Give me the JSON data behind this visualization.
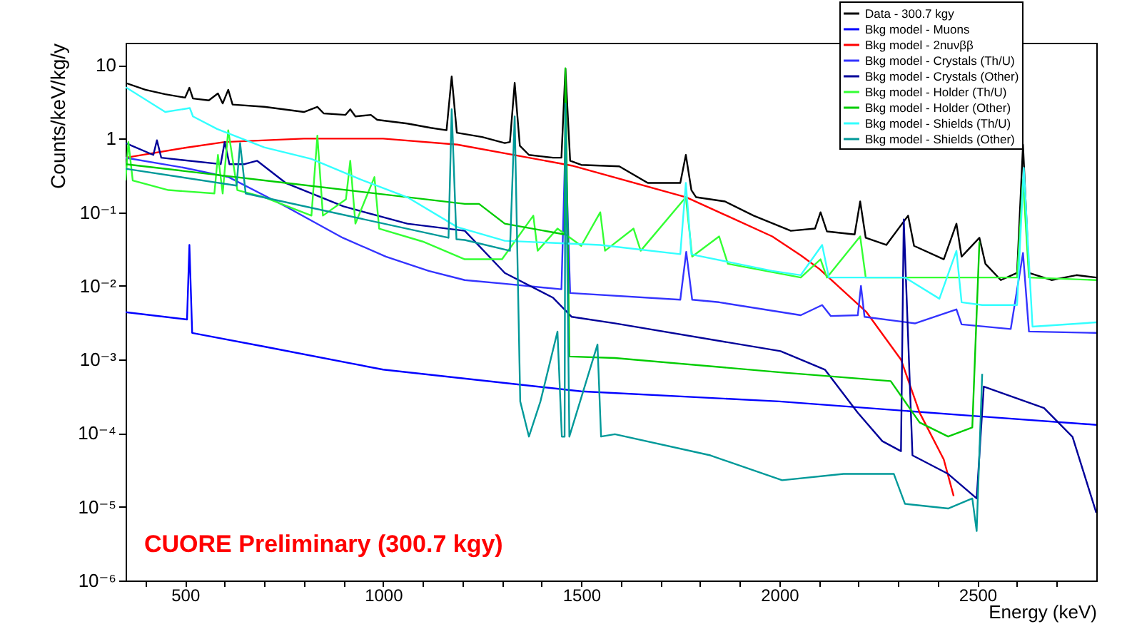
{
  "chart_data": {
    "type": "line",
    "xlabel": "Energy (keV)",
    "ylabel": "Counts/keV/kg/y",
    "annotations": [
      "CUORE Preliminary (300.7 kgy)"
    ],
    "xlim": [
      350,
      2800
    ],
    "xticks": [
      {
        "value": 400,
        "label": null
      },
      500,
      {
        "value": 600,
        "label": null
      },
      {
        "value": 700,
        "label": null
      },
      {
        "value": 800,
        "label": null
      },
      {
        "value": 900,
        "label": null
      },
      1000,
      {
        "value": 1100,
        "label": null
      },
      {
        "value": 1200,
        "label": null
      },
      {
        "value": 1300,
        "label": null
      },
      {
        "value": 1400,
        "label": null
      },
      1500,
      {
        "value": 1600,
        "label": null
      },
      {
        "value": 1700,
        "label": null
      },
      {
        "value": 1800,
        "label": null
      },
      {
        "value": 1900,
        "label": null
      },
      2000,
      {
        "value": 2100,
        "label": null
      },
      {
        "value": 2200,
        "label": null
      },
      {
        "value": 2300,
        "label": null
      },
      {
        "value": 2400,
        "label": null
      },
      2500,
      {
        "value": 2600,
        "label": null
      },
      {
        "value": 2700,
        "label": null
      }
    ],
    "ylim": [
      1e-06,
      20
    ],
    "log": "y",
    "yticks": [
      {
        "value": 1e-06,
        "label": "10⁻⁶"
      },
      {
        "value": 1e-05,
        "label": "10⁻⁵"
      },
      {
        "value": 0.0001,
        "label": "10⁻⁴"
      },
      {
        "value": 0.001,
        "label": "10⁻³"
      },
      {
        "value": 0.01,
        "label": "10⁻²"
      },
      {
        "value": 0.1,
        "label": "10⁻¹"
      },
      1,
      10
    ],
    "grid": false,
    "legend": "top right",
    "series": [
      {
        "name": "Data - 300.7 kgy",
        "color": "#000000",
        "x": [
          350,
          400,
          450,
          500,
          511,
          520,
          560,
          583,
          595,
          609,
          620,
          700,
          800,
          834,
          850,
          905,
          917,
          930,
          969,
          985,
          1061,
          1120,
          1160,
          1173,
          1186,
          1250,
          1307,
          1320,
          1332,
          1345,
          1368,
          1429,
          1450,
          1460,
          1472,
          1500,
          1596,
          1668,
          1750,
          1764,
          1778,
          1790,
          1863,
          1935,
          2029,
          2090,
          2104,
          2120,
          2190,
          2204,
          2218,
          2270,
          2325,
          2340,
          2415,
          2447,
          2460,
          2505,
          2520,
          2559,
          2600,
          2615,
          2630,
          2687,
          2750,
          2800
        ],
        "values": [
          5.7,
          4.6,
          4.0,
          3.6,
          4.9,
          3.5,
          3.3,
          4.1,
          3.0,
          4.6,
          2.9,
          2.7,
          2.3,
          2.7,
          2.2,
          2.1,
          2.5,
          2.0,
          2.1,
          1.8,
          1.6,
          1.4,
          1.3,
          7,
          1.2,
          1.05,
          0.87,
          0.9,
          5.7,
          0.8,
          0.6,
          0.55,
          0.55,
          8.9,
          0.5,
          0.44,
          0.42,
          0.25,
          0.25,
          0.6,
          0.2,
          0.16,
          0.14,
          0.09,
          0.056,
          0.06,
          0.1,
          0.055,
          0.05,
          0.14,
          0.045,
          0.036,
          0.09,
          0.035,
          0.023,
          0.07,
          0.025,
          0.045,
          0.02,
          0.012,
          0.015,
          0.83,
          0.015,
          0.012,
          0.014,
          0.013
        ]
      },
      {
        "name": "Bkg model - Muons",
        "color": "#0000ff",
        "x": [
          350,
          505,
          511,
          518,
          700,
          1000,
          1500,
          2000,
          2500,
          2800
        ],
        "values": [
          0.0044,
          0.0035,
          0.036,
          0.0023,
          0.0015,
          0.00073,
          0.00037,
          0.00027,
          0.00017,
          0.00013
        ]
      },
      {
        "name": "Bkg model - 2nuνββ",
        "color": "#ff0000",
        "x": [
          350,
          500,
          600,
          800,
          1000,
          1187,
          1476,
          1765,
          1982,
          2054,
          2101,
          2220,
          2307,
          2354,
          2415,
          2440
        ],
        "values": [
          0.55,
          0.75,
          0.9,
          1.0,
          1.0,
          0.83,
          0.43,
          0.16,
          0.047,
          0.026,
          0.017,
          0.0044,
          0.001,
          0.00019,
          4.4e-05,
          1.4e-05
        ]
      },
      {
        "name": "Bkg model - Crystals (Th/U)",
        "color": "#3333ff",
        "x": [
          350,
          500,
          610,
          754,
          898,
          1007,
          1115,
          1206,
          1307,
          1450,
          1460,
          1472,
          1750,
          1765,
          1780,
          1848,
          2054,
          2108,
          2130,
          2198,
          2206,
          2215,
          2343,
          2447,
          2460,
          2584,
          2615,
          2630,
          2800
        ],
        "values": [
          0.55,
          0.4,
          0.3,
          0.12,
          0.045,
          0.025,
          0.016,
          0.012,
          0.0107,
          0.009,
          0.9,
          0.008,
          0.0065,
          0.029,
          0.0065,
          0.006,
          0.004,
          0.0055,
          0.0039,
          0.004,
          0.01,
          0.0038,
          0.0031,
          0.0048,
          0.003,
          0.0026,
          0.028,
          0.0024,
          0.0023
        ]
      },
      {
        "name": "Bkg model - Crystals (Other)",
        "color": "#000099",
        "x": [
          350,
          420,
          429,
          440,
          590,
          600,
          612,
          650,
          682,
          754,
          900,
          1061,
          1206,
          1307,
          1429,
          1476,
          1585,
          2003,
          2115,
          2198,
          2260,
          2307,
          2314,
          2336,
          2426,
          2498,
          2516,
          2668,
          2740,
          2800
        ],
        "values": [
          0.87,
          0.6,
          0.95,
          0.55,
          0.45,
          0.9,
          0.45,
          0.45,
          0.5,
          0.25,
          0.12,
          0.07,
          0.056,
          0.015,
          0.0069,
          0.0038,
          0.0031,
          0.0013,
          0.00073,
          0.00019,
          7.8e-05,
          5.7e-05,
          0.08,
          5e-05,
          2.8e-05,
          1.3e-05,
          0.00043,
          0.00022,
          8.9e-05,
          8.3e-06
        ]
      },
      {
        "name": "Bkg model - Holder (Th/U)",
        "color": "#33ff33",
        "x": [
          350,
          357,
          368,
          458,
          574,
          583,
          595,
          609,
          632,
          700,
          819,
          834,
          848,
          906,
          917,
          930,
          978,
          990,
          1100,
          1206,
          1300,
          1379,
          1390,
          1440,
          1500,
          1548,
          1560,
          1632,
          1650,
          1764,
          1780,
          1848,
          1870,
          2054,
          2104,
          2120,
          2204,
          2218,
          2400,
          2600,
          2615,
          2630,
          2800
        ],
        "values": [
          0.27,
          0.9,
          0.27,
          0.2,
          0.18,
          0.6,
          0.18,
          1.3,
          0.2,
          0.16,
          0.09,
          1.1,
          0.09,
          0.15,
          0.5,
          0.07,
          0.3,
          0.06,
          0.04,
          0.023,
          0.023,
          0.09,
          0.03,
          0.06,
          0.035,
          0.1,
          0.03,
          0.06,
          0.03,
          0.16,
          0.025,
          0.047,
          0.02,
          0.013,
          0.023,
          0.013,
          0.047,
          0.013,
          0.013,
          0.013,
          0.28,
          0.013,
          0.012
        ]
      },
      {
        "name": "Bkg model - Holder (Other)",
        "color": "#00cc00",
        "x": [
          350,
          754,
          1206,
          1242,
          1307,
          1458,
          1460,
          1470,
          1585,
          2003,
          2281,
          2354,
          2426,
          2487,
          2505
        ],
        "values": [
          0.45,
          0.25,
          0.13,
          0.13,
          0.07,
          0.05,
          9,
          0.0011,
          0.00105,
          0.00067,
          0.00051,
          0.00014,
          9e-05,
          0.00012,
          0.04
        ]
      },
      {
        "name": "Bkg model - Shields (Th/U)",
        "color": "#33ffff",
        "x": [
          350,
          450,
          512,
          520,
          581,
          700,
          819,
          942,
          1061,
          1187,
          1307,
          1548,
          1750,
          1764,
          1778,
          1790,
          1982,
          2054,
          2108,
          2125,
          2317,
          2404,
          2447,
          2460,
          2512,
          2600,
          2617,
          2639,
          2800
        ],
        "values": [
          5,
          2.3,
          2.6,
          2.0,
          1.35,
          0.76,
          0.53,
          0.28,
          0.16,
          0.063,
          0.041,
          0.036,
          0.027,
          0.25,
          0.027,
          0.026,
          0.016,
          0.014,
          0.036,
          0.013,
          0.013,
          0.0067,
          0.03,
          0.006,
          0.0055,
          0.0055,
          0.4,
          0.0028,
          0.0032
        ]
      },
      {
        "name": "Bkg model - Shields (Other)",
        "color": "#009999",
        "x": [
          350,
          630,
          639,
          653,
          1165,
          1173,
          1185,
          1206,
          1320,
          1332,
          1346,
          1368,
          1397,
          1440,
          1451,
          1458,
          1460,
          1470,
          1541,
          1550,
          1585,
          1826,
          2007,
          2162,
          2289,
          2317,
          2426,
          2487,
          2498,
          2512
        ],
        "values": [
          0.39,
          0.23,
          0.87,
          0.18,
          0.045,
          2.5,
          0.043,
          0.042,
          0.03,
          2,
          0.00027,
          9e-05,
          0.00027,
          0.0024,
          9e-05,
          9e-05,
          3,
          9e-05,
          0.0016,
          9e-05,
          9.7e-05,
          5e-05,
          2.3e-05,
          2.8e-05,
          2.8e-05,
          1.1e-05,
          9.5e-06,
          1.3e-05,
          4.7e-06,
          0.00064
        ]
      }
    ]
  }
}
